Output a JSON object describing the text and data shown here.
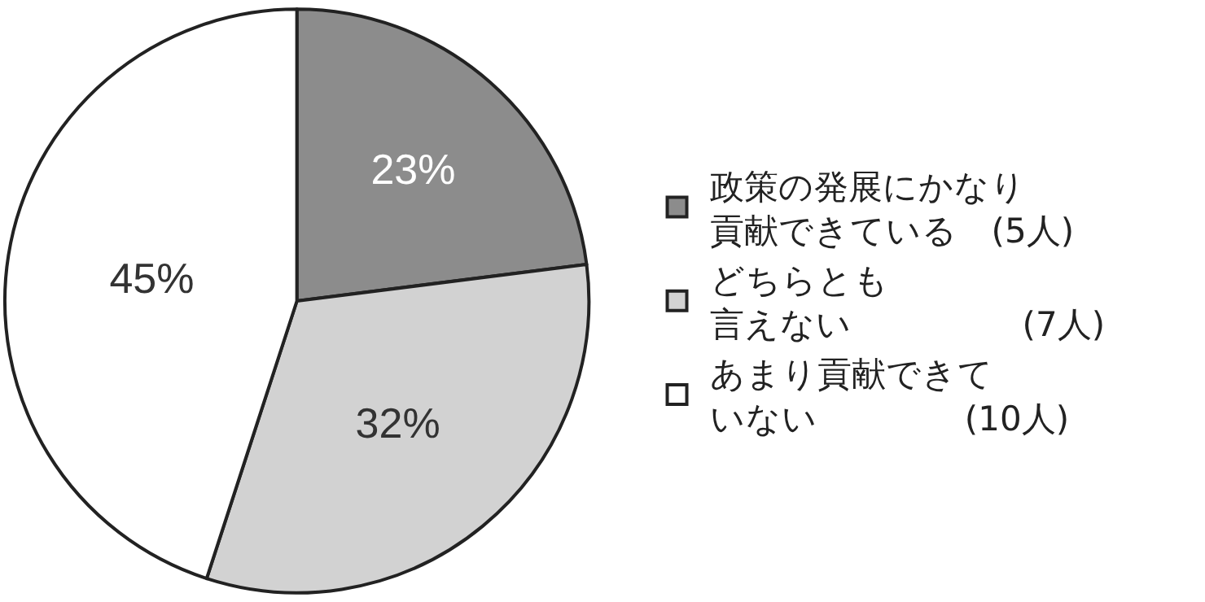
{
  "chart_data": {
    "type": "pie",
    "categories": [
      "政策の発展にかなり貢献できている　(5人)",
      "どちらとも言えない　　　　　(7人)",
      "あまり貢献できていない　　　　 (10人)"
    ],
    "values": [
      23,
      32,
      45
    ],
    "colors": [
      "#8c8c8c",
      "#d2d2d2",
      "#ffffff"
    ],
    "value_labels": [
      "23%",
      "32%",
      "45%"
    ],
    "legend": "right"
  }
}
